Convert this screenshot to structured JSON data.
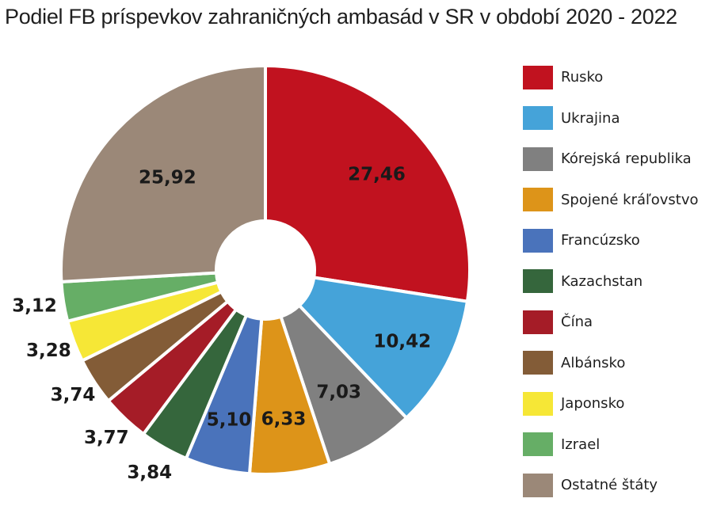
{
  "chart_data": {
    "type": "pie",
    "title": "Podiel FB príspevkov zahraničných ambasád v SR v období 2020 - 2022",
    "categories": [
      "Rusko",
      "Ukrajina",
      "Kórejská republika",
      "Spojené kráľovstvo",
      "Francúzsko",
      "Kazachstan",
      "Čína",
      "Albánsko",
      "Japonsko",
      "Izrael",
      "Ostatné štáty"
    ],
    "values": [
      27.46,
      10.42,
      7.03,
      6.33,
      5.1,
      3.84,
      3.77,
      3.74,
      3.28,
      3.12,
      25.92
    ],
    "value_labels": [
      "27,46",
      "10,42",
      "7,03",
      "6,33",
      "5,10",
      "3,84",
      "3,77",
      "3,74",
      "3,28",
      "3,12",
      "25,92"
    ],
    "colors": [
      "#c1121f",
      "#45a3d9",
      "#808080",
      "#dd9419",
      "#4a73bb",
      "#35663c",
      "#a51c27",
      "#835c37",
      "#f6e736",
      "#66ae66",
      "#9b8878"
    ],
    "donut": true,
    "legend_position": "right"
  }
}
